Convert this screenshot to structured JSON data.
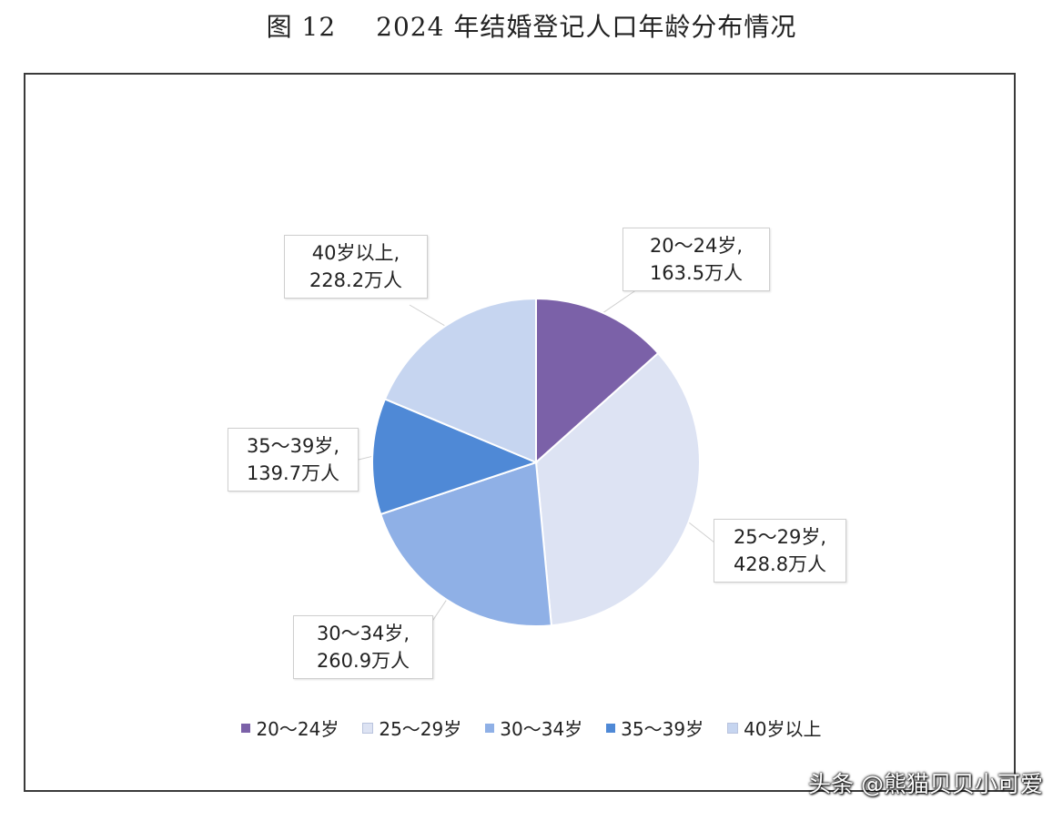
{
  "figure": {
    "number": "图 12",
    "title": "2024 年结婚登记人口年龄分布情况"
  },
  "chart_data": {
    "type": "pie",
    "categories": [
      "20～24岁",
      "25～29岁",
      "30～34岁",
      "35～39岁",
      "40岁以上"
    ],
    "values": [
      163.5,
      428.8,
      260.9,
      139.7,
      228.2
    ],
    "unit": "万人",
    "colors": [
      "#7b61a8",
      "#dde3f3",
      "#8fb0e6",
      "#4f89d6",
      "#c6d5f0"
    ],
    "labels": [
      {
        "line1": "20～24岁,",
        "line2": "163.5万人"
      },
      {
        "line1": "25～29岁,",
        "line2": "428.8万人"
      },
      {
        "line1": "30～34岁,",
        "line2": "260.9万人"
      },
      {
        "line1": "35～39岁,",
        "line2": "139.7万人"
      },
      {
        "line1": "40岁以上,",
        "line2": "228.2万人"
      }
    ],
    "legend": [
      "20～24岁",
      "25～29岁",
      "30～34岁",
      "35～39岁",
      "40岁以上"
    ],
    "legend_position": "bottom"
  },
  "watermark": "头条 @熊猫贝贝小可爱"
}
